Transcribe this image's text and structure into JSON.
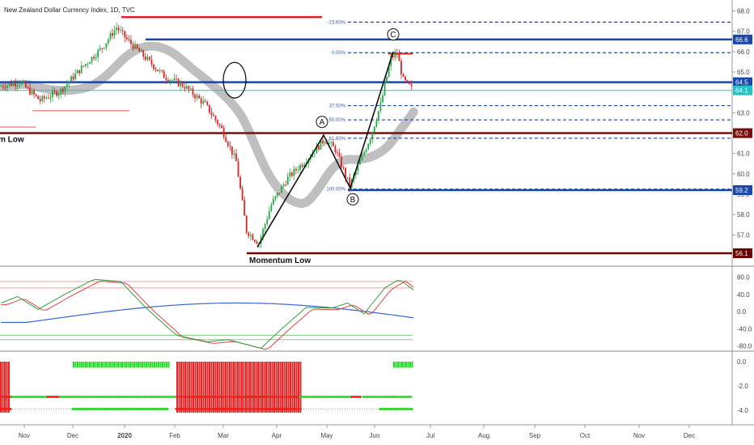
{
  "chart_data": {
    "type": "candlestick",
    "title": "New Zealand Dollar Currency Index, 1D, TVC",
    "x_labels": [
      "Nov",
      "Dec",
      "2020",
      "Feb",
      "Mar",
      "Apr",
      "May",
      "Jun",
      "Jul",
      "Aug",
      "Sep",
      "Oct",
      "Nov",
      "Dec"
    ],
    "price_axis": {
      "range": [
        56.1,
        68.3
      ],
      "ticks": [
        "68.0",
        "67.0",
        "66.0",
        "65.0",
        "64.0",
        "63.0",
        "62.0",
        "61.0",
        "60.0",
        "59.0",
        "58.0",
        "57.0"
      ]
    },
    "price_badges": [
      {
        "label": "66.6",
        "value": 66.6,
        "color": "#1848a8"
      },
      {
        "label": "64.5",
        "value": 64.5,
        "color": "#1848a8"
      },
      {
        "label": "64.1",
        "value": 64.1,
        "color": "#24c4c4"
      },
      {
        "label": "62.0",
        "value": 62.0,
        "color": "#7a0e0e"
      },
      {
        "label": "59.2",
        "value": 59.2,
        "color": "#1848a8"
      },
      {
        "label": "56.1",
        "value": 56.1,
        "color": "#6b0000"
      }
    ],
    "fib_levels": [
      {
        "label": "-23.60%",
        "value": 67.45
      },
      {
        "label": "0.00%",
        "value": 65.95
      },
      {
        "label": "37.50%",
        "value": 63.35
      },
      {
        "label": "50.00%",
        "value": 62.65
      },
      {
        "label": "61.80%",
        "value": 61.75
      },
      {
        "label": "100.00%",
        "value": 59.25
      }
    ],
    "annotations": [
      "Momentum Low",
      "m Low"
    ],
    "wave_labels": [
      "A",
      "B",
      "C"
    ],
    "oscillator_1": {
      "ticks": [
        "80.0",
        "40.0",
        "0.0",
        "-40.0",
        "-80.0"
      ],
      "range": [
        -88,
        98
      ]
    },
    "oscillator_2": {
      "ticks": [
        "0.0",
        "-2.0",
        "-4.0"
      ],
      "range": [
        -5.0,
        0.6
      ]
    }
  },
  "colors": {
    "up": "#22aa44",
    "down": "#dd2222",
    "blue_level": "#1848a8",
    "dark_red_level": "#7a0e0e",
    "ma_band": "#b4b4b4"
  }
}
